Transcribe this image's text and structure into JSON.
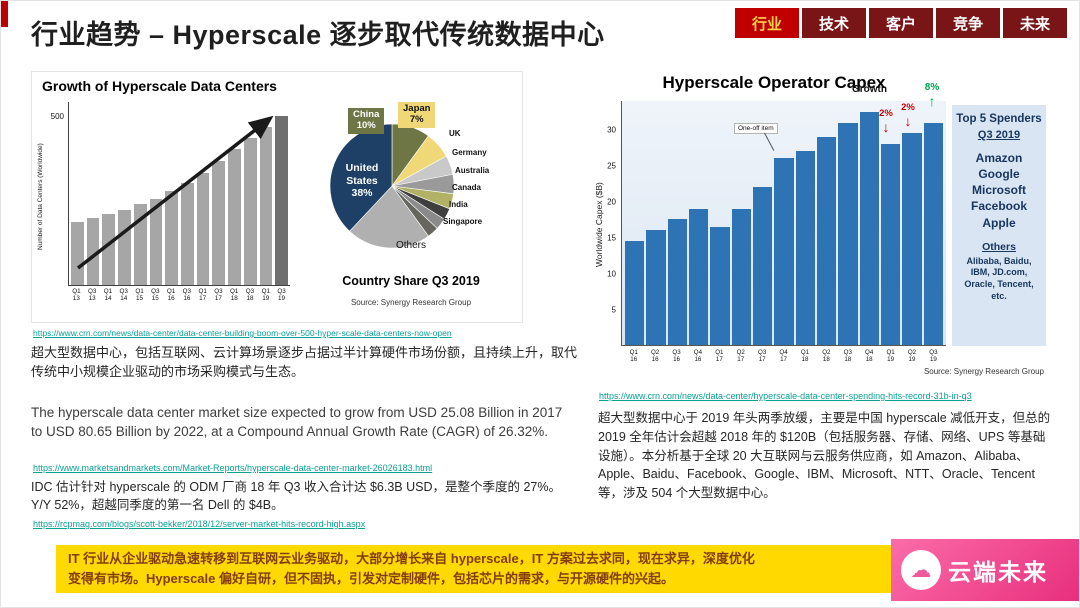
{
  "header": {
    "title": "行业趋势 – Hyperscale 逐步取代传统数据中心",
    "tabs": [
      {
        "label": "行业",
        "active": true
      },
      {
        "label": "技术",
        "active": false
      },
      {
        "label": "客户",
        "active": false
      },
      {
        "label": "竞争",
        "active": false
      },
      {
        "label": "未来",
        "active": false
      }
    ]
  },
  "colors": {
    "accent_red": "#c00000",
    "tab_active_bg": "#c00000",
    "tab_active_text": "#ffd34d",
    "tab_inactive_bg": "#7a1517",
    "link_green": "#0aa193",
    "banner_bg": "#ffd900",
    "banner_text": "#843c0c",
    "watermark_pink": "#e82f7d"
  },
  "left": {
    "link1": "https://www.crn.com/news/data-center/data-center-building-boom-over-500-hyper-scale-data-centers-now-open",
    "para1": "超大型数据中心，包括互联网、云计算场景逐步占据过半计算硬件市场份额，且持续上升，取代传统中小规模企业驱动的市场采购模式与生态。",
    "para2": "The hyperscale data center market size expected to grow from USD 25.08 Billion in 2017 to USD 80.65 Billion by 2022, at a Compound Annual Growth Rate (CAGR) of 26.32%.",
    "link2": "https://www.marketsandmarkets.com/Market-Reports/hyperscale-data-center-market-26026183.html",
    "para3": "IDC 估计针对 hyperscale 的 ODM 厂商 18 年 Q3 收入合计达 $6.3B USD，是整个季度的 27%。Y/Y 52%，超越同季度的第一名 Dell 的 $4B。",
    "link3": "https://rcpmag.com/blogs/scott-bekker/2018/12/server-market-hits-record-high.aspx"
  },
  "right": {
    "link1": "https://www.crn.com/news/data-center/hyperscale-data-center-spending-hits-record-31b-in-q3",
    "para1": "超大型数据中心于 2019 年头两季放缓，主要是中国 hyperscale 减低开支，但总的 2019 全年估计会超越 2018 年的 $120B（包括服务器、存储、网络、UPS 等基础设施）。本分析基于全球 20 大互联网与云服务供应商，如 Amazon、Alibaba、Apple、Baidu、Facebook、Google、IBM、Microsoft、NTT、Oracle、Tencent 等，涉及 504 个大型数据中心。"
  },
  "banner": {
    "line1": "IT 行业从企业驱动急速转移到互联网云业务驱动，大部分增长来自 hyperscale，IT 方案过去求同，现在求异，深度优化",
    "line2": "变得有市场。Hyperscale 偏好自研，但不固执，引发对定制硬件，包括芯片的需求，与开源硬件的兴起。"
  },
  "watermark": {
    "text": "云端未来"
  },
  "chart_data": [
    {
      "type": "bar",
      "title": "Growth of Hyperscale Data Centers",
      "ylabel": "Number of Data Centers (Worldwide)",
      "ytick_label": "500",
      "ylim": [
        0,
        550
      ],
      "categories": [
        "Q1 13",
        "Q3 13",
        "Q1 14",
        "Q3 14",
        "Q1 15",
        "Q3 15",
        "Q1 16",
        "Q3 16",
        "Q1 17",
        "Q3 17",
        "Q1 18",
        "Q3 18",
        "Q1 19",
        "Q3 19"
      ],
      "values": [
        190,
        200,
        212,
        226,
        242,
        260,
        282,
        308,
        338,
        372,
        408,
        442,
        475,
        508
      ],
      "bar_color": "#a6a6a6",
      "bar_color_last": "#6e6e6e",
      "trend_arrow": true,
      "grid": false
    },
    {
      "type": "pie",
      "title": "Country Share Q3 2019",
      "source": "Source: Synergy Research Group",
      "slices": [
        {
          "label": "China",
          "value": 10,
          "pct_label": "10%",
          "color": "#6e7645"
        },
        {
          "label": "Japan",
          "value": 7,
          "pct_label": "7%",
          "color": "#f0d878"
        },
        {
          "label": "UK",
          "value": 5,
          "color": "#c9c9c9"
        },
        {
          "label": "Germany",
          "value": 5,
          "color": "#9a9a9a"
        },
        {
          "label": "Australia",
          "value": 4,
          "color": "#b2b266"
        },
        {
          "label": "Canada",
          "value": 3,
          "color": "#3f3f3f"
        },
        {
          "label": "India",
          "value": 3,
          "color": "#8a8a8a"
        },
        {
          "label": "Singapore",
          "value": 3,
          "color": "#66665e"
        },
        {
          "label": "Others",
          "value": 22,
          "color": "#b0b0b0"
        },
        {
          "label": "United States",
          "value": 38,
          "pct_label": "38%",
          "color": "#1f4066"
        }
      ]
    },
    {
      "type": "bar",
      "title": "Hyperscale Operator Capex",
      "ylabel": "Worldwide Capex ($B)",
      "yticks": [
        5,
        10,
        15,
        20,
        25,
        30
      ],
      "ymax": 34,
      "categories": [
        "Q1 16",
        "Q2 16",
        "Q3 16",
        "Q4 16",
        "Q1 17",
        "Q2 17",
        "Q3 17",
        "Q4 17",
        "Q1 18",
        "Q2 18",
        "Q3 18",
        "Q4 18",
        "Q1 19",
        "Q2 19",
        "Q3 19"
      ],
      "values": [
        14.5,
        16,
        17.5,
        19,
        16.5,
        19,
        22,
        26,
        27,
        29,
        31,
        32.5,
        28,
        29.5,
        31
      ],
      "bar_color": "#2e74b5",
      "annotations": {
        "one_off_label": "One-off item",
        "growth_word": "Growth",
        "decline1_pct": "2%",
        "decline2_pct": "2%",
        "growth_pct": "8%",
        "decline_quarters": [
          "Q1 19",
          "Q2 19"
        ],
        "growth_quarter": "Q3 19"
      },
      "side_panel": {
        "title": "Top 5 Spenders",
        "subtitle": "Q3 2019",
        "top5": [
          "Amazon",
          "Google",
          "Microsoft",
          "Facebook",
          "Apple"
        ],
        "others_label": "Others",
        "others_text": "Alibaba, Baidu, IBM, JD.com, Oracle, Tencent, etc."
      },
      "source": "Source: Synergy Research Group",
      "grid": false
    }
  ]
}
